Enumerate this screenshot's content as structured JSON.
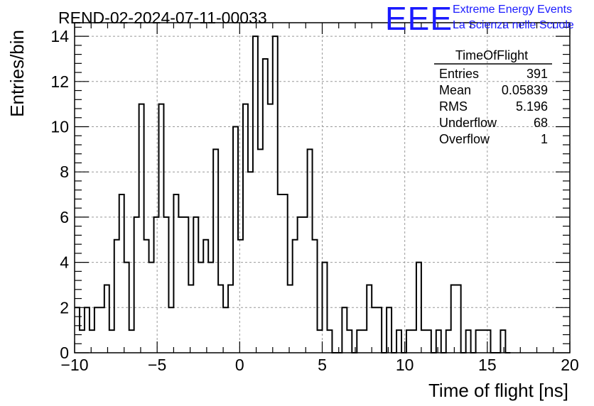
{
  "chart_data": {
    "type": "bar",
    "title": "REND-02-2024-07-11-00033",
    "xlabel": "Time of flight [ns]",
    "ylabel": "Entries/bin",
    "xlim": [
      -10,
      20
    ],
    "ylim": [
      0,
      14.6
    ],
    "grid": true,
    "bin_width": 0.3,
    "x_ticks": [
      -10,
      -5,
      0,
      5,
      10,
      15,
      20
    ],
    "y_ticks": [
      0,
      2,
      4,
      6,
      8,
      10,
      12,
      14
    ],
    "bins": [
      {
        "x": -10.0,
        "y": 2
      },
      {
        "x": -9.7,
        "y": 1
      },
      {
        "x": -9.4,
        "y": 2
      },
      {
        "x": -9.1,
        "y": 1
      },
      {
        "x": -8.8,
        "y": 2
      },
      {
        "x": -8.5,
        "y": 2
      },
      {
        "x": -8.2,
        "y": 3
      },
      {
        "x": -7.9,
        "y": 1
      },
      {
        "x": -7.6,
        "y": 5
      },
      {
        "x": -7.3,
        "y": 7
      },
      {
        "x": -7.0,
        "y": 4
      },
      {
        "x": -6.7,
        "y": 1
      },
      {
        "x": -6.4,
        "y": 6
      },
      {
        "x": -6.1,
        "y": 11
      },
      {
        "x": -5.8,
        "y": 5
      },
      {
        "x": -5.5,
        "y": 4
      },
      {
        "x": -5.2,
        "y": 6
      },
      {
        "x": -4.9,
        "y": 11
      },
      {
        "x": -4.6,
        "y": 6
      },
      {
        "x": -4.3,
        "y": 2
      },
      {
        "x": -4.0,
        "y": 7
      },
      {
        "x": -3.7,
        "y": 6
      },
      {
        "x": -3.4,
        "y": 6
      },
      {
        "x": -3.1,
        "y": 3
      },
      {
        "x": -2.8,
        "y": 6
      },
      {
        "x": -2.5,
        "y": 4
      },
      {
        "x": -2.2,
        "y": 5
      },
      {
        "x": -1.9,
        "y": 4
      },
      {
        "x": -1.6,
        "y": 9
      },
      {
        "x": -1.3,
        "y": 3
      },
      {
        "x": -1.0,
        "y": 2
      },
      {
        "x": -0.7,
        "y": 3
      },
      {
        "x": -0.4,
        "y": 10
      },
      {
        "x": -0.1,
        "y": 5
      },
      {
        "x": 0.2,
        "y": 11
      },
      {
        "x": 0.5,
        "y": 8
      },
      {
        "x": 0.8,
        "y": 14
      },
      {
        "x": 1.1,
        "y": 9
      },
      {
        "x": 1.4,
        "y": 13
      },
      {
        "x": 1.7,
        "y": 11
      },
      {
        "x": 2.0,
        "y": 14
      },
      {
        "x": 2.3,
        "y": 7
      },
      {
        "x": 2.6,
        "y": 7
      },
      {
        "x": 2.9,
        "y": 3
      },
      {
        "x": 3.2,
        "y": 5
      },
      {
        "x": 3.5,
        "y": 6
      },
      {
        "x": 3.8,
        "y": 6
      },
      {
        "x": 4.1,
        "y": 9
      },
      {
        "x": 4.4,
        "y": 5
      },
      {
        "x": 4.7,
        "y": 1
      },
      {
        "x": 5.0,
        "y": 4
      },
      {
        "x": 5.3,
        "y": 1
      },
      {
        "x": 5.6,
        "y": 0
      },
      {
        "x": 5.9,
        "y": 0
      },
      {
        "x": 6.2,
        "y": 2
      },
      {
        "x": 6.5,
        "y": 1
      },
      {
        "x": 6.8,
        "y": 0
      },
      {
        "x": 7.1,
        "y": 1
      },
      {
        "x": 7.4,
        "y": 1
      },
      {
        "x": 7.7,
        "y": 3
      },
      {
        "x": 8.0,
        "y": 2
      },
      {
        "x": 8.3,
        "y": 2
      },
      {
        "x": 8.6,
        "y": 0
      },
      {
        "x": 8.9,
        "y": 2
      },
      {
        "x": 9.2,
        "y": 0
      },
      {
        "x": 9.5,
        "y": 1
      },
      {
        "x": 9.8,
        "y": 0
      },
      {
        "x": 10.1,
        "y": 1
      },
      {
        "x": 10.4,
        "y": 1
      },
      {
        "x": 10.7,
        "y": 4
      },
      {
        "x": 11.0,
        "y": 1
      },
      {
        "x": 11.3,
        "y": 1
      },
      {
        "x": 11.6,
        "y": 0
      },
      {
        "x": 11.9,
        "y": 1
      },
      {
        "x": 12.2,
        "y": 0
      },
      {
        "x": 12.5,
        "y": 1
      },
      {
        "x": 12.8,
        "y": 3
      },
      {
        "x": 13.1,
        "y": 3
      },
      {
        "x": 13.4,
        "y": 0
      },
      {
        "x": 13.7,
        "y": 1
      },
      {
        "x": 14.0,
        "y": 0
      },
      {
        "x": 14.3,
        "y": 1
      },
      {
        "x": 14.6,
        "y": 1
      },
      {
        "x": 14.9,
        "y": 1
      },
      {
        "x": 15.2,
        "y": 0
      },
      {
        "x": 15.5,
        "y": 0
      },
      {
        "x": 15.8,
        "y": 1
      },
      {
        "x": 16.1,
        "y": 0
      }
    ],
    "stats": {
      "name": "TimeOfFlight",
      "rows": [
        {
          "label": "Entries",
          "value": "391"
        },
        {
          "label": "Mean",
          "value": "0.05839"
        },
        {
          "label": "RMS",
          "value": "5.196"
        },
        {
          "label": "Underflow",
          "value": "68"
        },
        {
          "label": "Overflow",
          "value": "1"
        }
      ]
    }
  },
  "logo": {
    "mark": "EEE",
    "line1": "Extreme Energy Events",
    "line2": "La Scienza nelle Scuole",
    "color": "#1a1aff"
  },
  "colors": {
    "histogram": "#000000",
    "grid": "#999999",
    "axis": "#000000"
  }
}
